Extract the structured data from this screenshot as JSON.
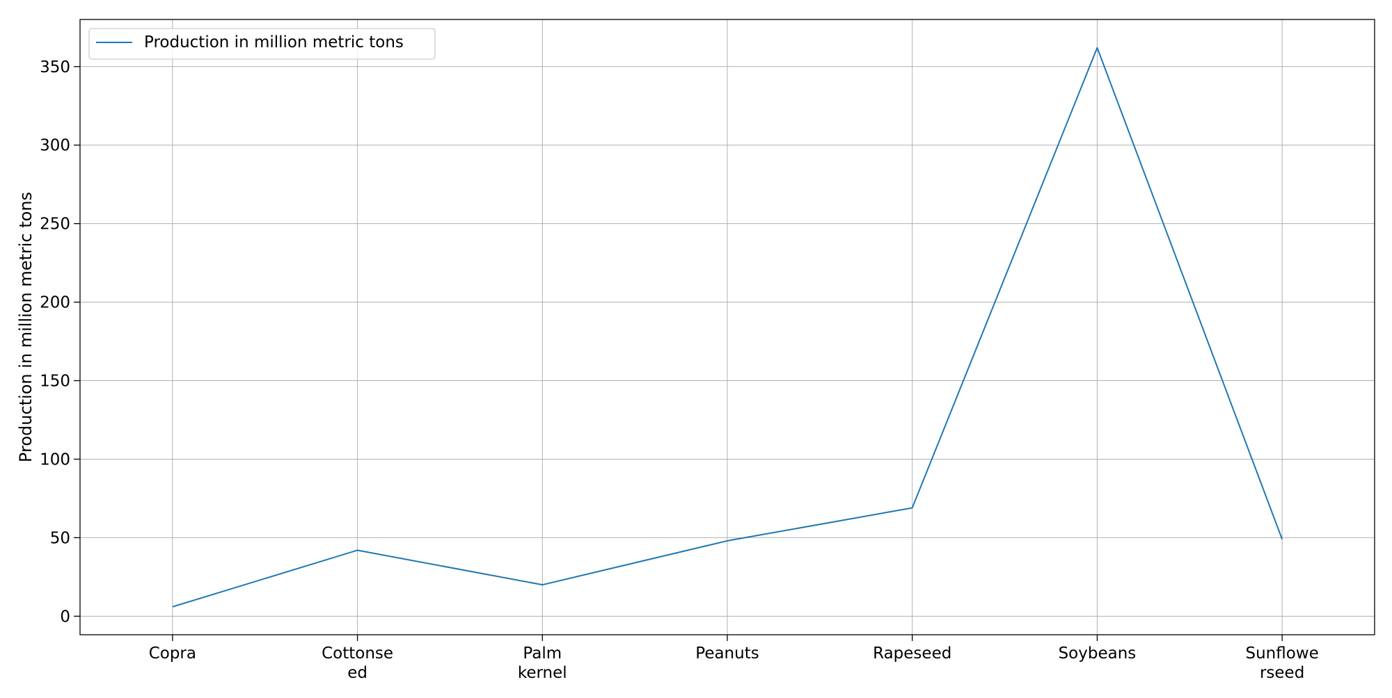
{
  "chart_data": {
    "type": "line",
    "categories": [
      [
        "Copra"
      ],
      [
        "Cottonse",
        "ed"
      ],
      [
        "Palm",
        "kernel"
      ],
      [
        "Peanuts"
      ],
      [
        "Rapeseed"
      ],
      [
        "Soybeans"
      ],
      [
        "Sunflowe",
        "rseed"
      ]
    ],
    "series": [
      {
        "name": "Production in million metric tons",
        "values": [
          6,
          42,
          20,
          48,
          69,
          362,
          49
        ],
        "color": "#1f77b4"
      }
    ],
    "xlabel": "",
    "ylabel": "Production in million metric tons",
    "ylim": [
      -11.8,
      380
    ],
    "yticks": [
      0,
      50,
      100,
      150,
      200,
      250,
      300,
      350
    ],
    "grid": true,
    "legend_position": "top-left"
  }
}
